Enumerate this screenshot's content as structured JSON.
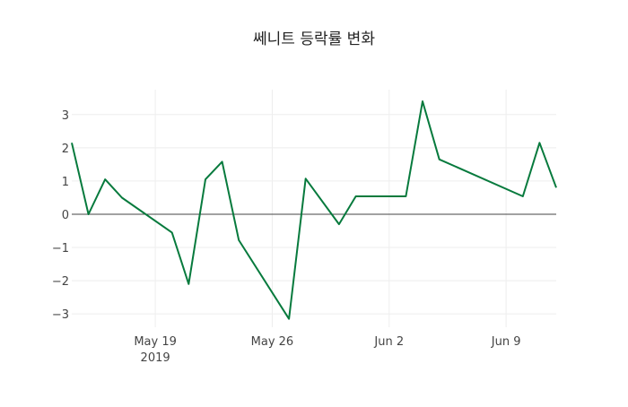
{
  "chart_data": {
    "type": "line",
    "title": "쎄니트 등락률 변화",
    "xlabel": "",
    "ylabel": "",
    "x": [
      "2019-05-14",
      "2019-05-15",
      "2019-05-16",
      "2019-05-17",
      "2019-05-20",
      "2019-05-21",
      "2019-05-22",
      "2019-05-23",
      "2019-05-24",
      "2019-05-27",
      "2019-05-28",
      "2019-05-30",
      "2019-05-31",
      "2019-06-03",
      "2019-06-04",
      "2019-06-05",
      "2019-06-10",
      "2019-06-11",
      "2019-06-12"
    ],
    "series": [
      {
        "name": "등락률",
        "color": "#077a3d",
        "values": [
          2.15,
          0.0,
          1.05,
          0.5,
          -0.55,
          -2.1,
          1.05,
          1.58,
          -0.78,
          -3.15,
          1.07,
          -0.3,
          0.54,
          0.54,
          3.4,
          1.65,
          0.54,
          2.15,
          0.8
        ]
      }
    ],
    "xlim": [
      "2019-05-14",
      "2019-06-12"
    ],
    "ylim": [
      -3.4,
      3.75
    ],
    "x_ticks": [
      {
        "date": "2019-05-19",
        "label": "May 19",
        "sublabel": "2019"
      },
      {
        "date": "2019-05-26",
        "label": "May 26"
      },
      {
        "date": "2019-06-02",
        "label": "Jun 2"
      },
      {
        "date": "2019-06-09",
        "label": "Jun 9"
      }
    ],
    "y_ticks": [
      3,
      2,
      1,
      0,
      -1,
      -2,
      -3
    ],
    "y_tick_labels": [
      "3",
      "2",
      "1",
      "0",
      "−1",
      "−2",
      "−3"
    ],
    "grid": true,
    "legend": "none"
  }
}
